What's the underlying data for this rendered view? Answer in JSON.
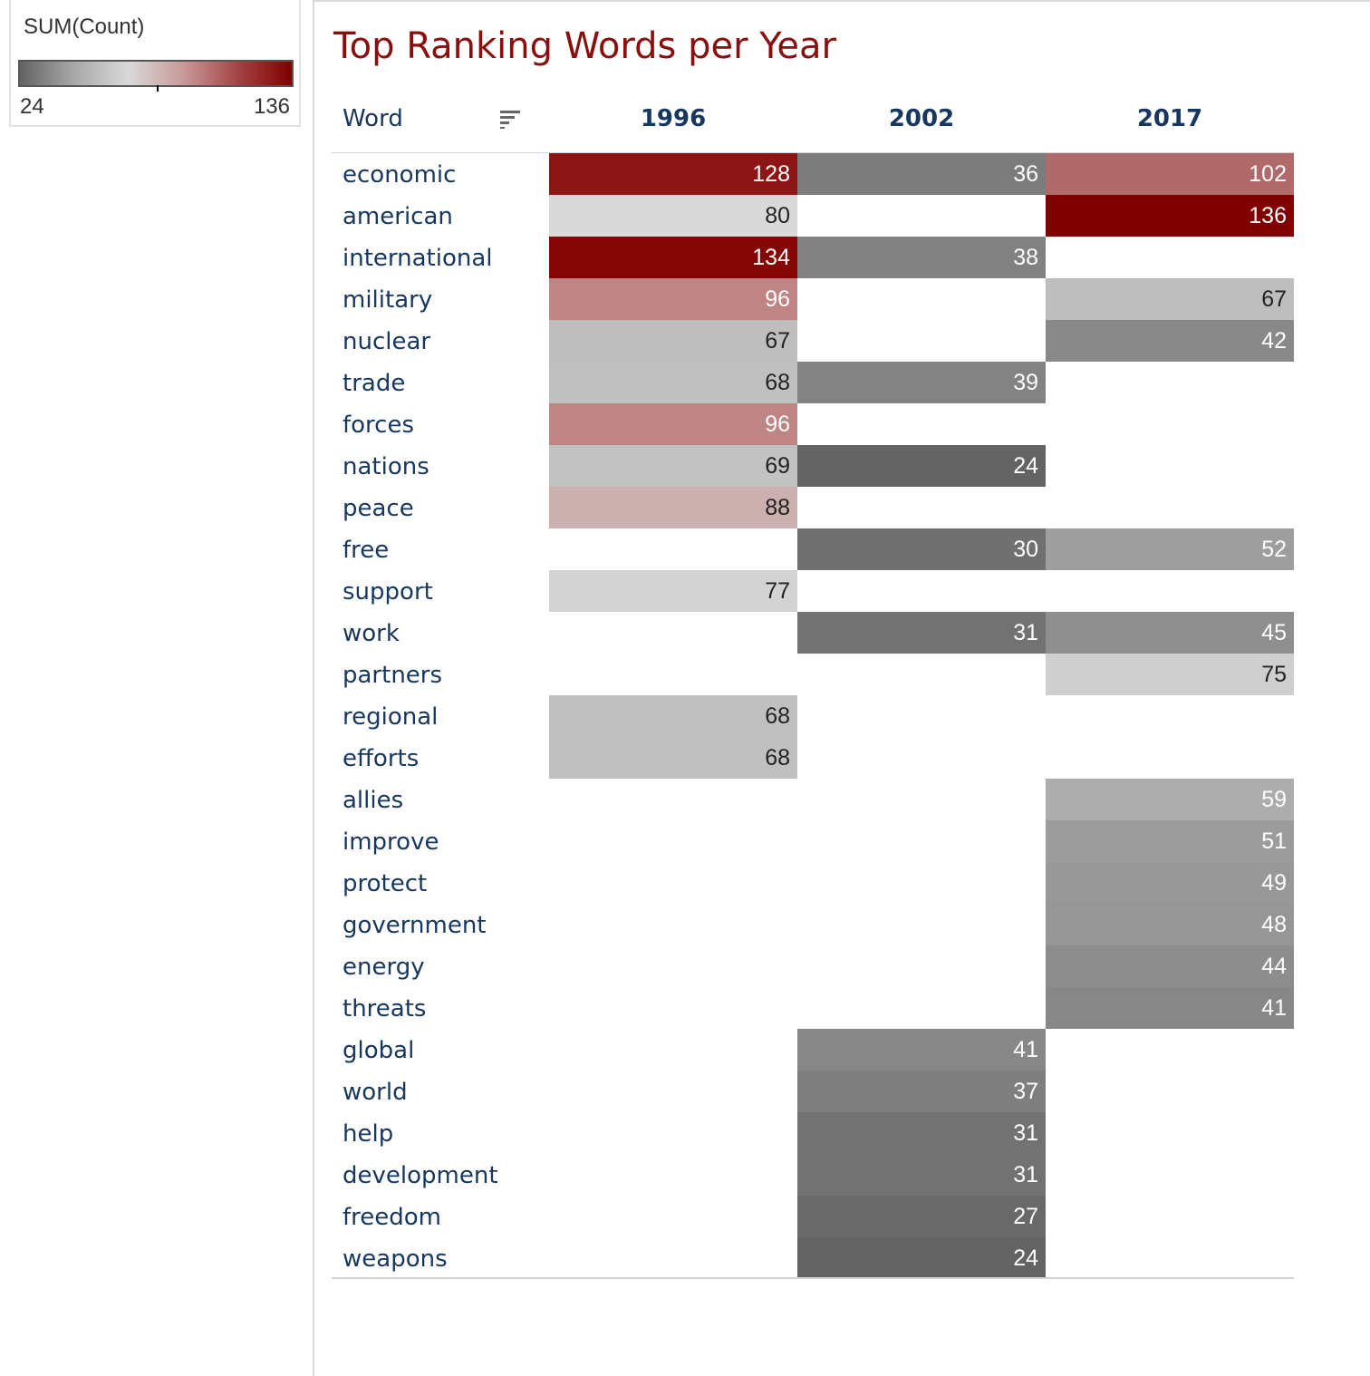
{
  "legend": {
    "title": "SUM(Count)",
    "min_label": "24",
    "max_label": "136",
    "min": 24,
    "max": 136,
    "colors": [
      "#636363",
      "#a8a8a8",
      "#d9d9d9",
      "#c99a9a",
      "#a44444",
      "#800000"
    ]
  },
  "chart_data": {
    "type": "heatmap",
    "title": "Top Ranking Words per Year",
    "row_header": "Word",
    "columns": [
      "1996",
      "2002",
      "2017"
    ],
    "rows": [
      {
        "word": "economic",
        "values": [
          128,
          36,
          102
        ]
      },
      {
        "word": "american",
        "values": [
          80,
          null,
          136
        ]
      },
      {
        "word": "international",
        "values": [
          134,
          38,
          null
        ]
      },
      {
        "word": "military",
        "values": [
          96,
          null,
          67
        ]
      },
      {
        "word": "nuclear",
        "values": [
          67,
          null,
          42
        ]
      },
      {
        "word": "trade",
        "values": [
          68,
          39,
          null
        ]
      },
      {
        "word": "forces",
        "values": [
          96,
          null,
          null
        ]
      },
      {
        "word": "nations",
        "values": [
          69,
          24,
          null
        ]
      },
      {
        "word": "peace",
        "values": [
          88,
          null,
          null
        ]
      },
      {
        "word": "free",
        "values": [
          null,
          30,
          52
        ]
      },
      {
        "word": "support",
        "values": [
          77,
          null,
          null
        ]
      },
      {
        "word": "work",
        "values": [
          null,
          31,
          45
        ]
      },
      {
        "word": "partners",
        "values": [
          null,
          null,
          75
        ]
      },
      {
        "word": "regional",
        "values": [
          68,
          null,
          null
        ]
      },
      {
        "word": "efforts",
        "values": [
          68,
          null,
          null
        ]
      },
      {
        "word": "allies",
        "values": [
          null,
          null,
          59
        ]
      },
      {
        "word": "improve",
        "values": [
          null,
          null,
          51
        ]
      },
      {
        "word": "protect",
        "values": [
          null,
          null,
          49
        ]
      },
      {
        "word": "government",
        "values": [
          null,
          null,
          48
        ]
      },
      {
        "word": "energy",
        "values": [
          null,
          null,
          44
        ]
      },
      {
        "word": "threats",
        "values": [
          null,
          null,
          41
        ]
      },
      {
        "word": "global",
        "values": [
          null,
          41,
          null
        ]
      },
      {
        "word": "world",
        "values": [
          null,
          37,
          null
        ]
      },
      {
        "word": "help",
        "values": [
          null,
          31,
          null
        ]
      },
      {
        "word": "development",
        "values": [
          null,
          31,
          null
        ]
      },
      {
        "word": "freedom",
        "values": [
          null,
          27,
          null
        ]
      },
      {
        "word": "weapons",
        "values": [
          null,
          24,
          null
        ]
      }
    ]
  }
}
